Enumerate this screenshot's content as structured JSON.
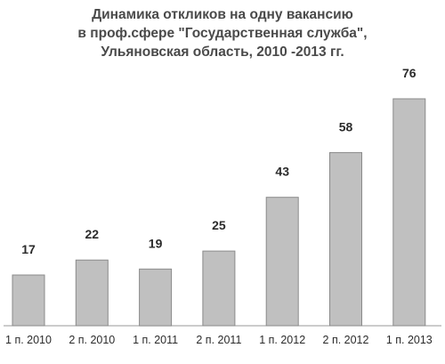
{
  "chart_data": {
    "type": "bar",
    "title_lines": [
      "Динамика откликов на одну вакансию",
      "в проф.сфере \"Государственная служба\",",
      "Ульяновская область,  2010 -2013 гг."
    ],
    "categories": [
      "1 п. 2010",
      "2 п. 2010",
      "1 п. 2011",
      "2 п. 2011",
      "1 п. 2012",
      "2 п. 2012",
      "1 п. 2013"
    ],
    "values": [
      17,
      22,
      19,
      25,
      43,
      58,
      76
    ],
    "ylim": [
      0,
      80
    ],
    "grid": false,
    "legend": "none",
    "colors": {
      "bar_fill": "#c0c0c0",
      "bar_stroke": "#8a8a8a",
      "axis": "#9a9a9a"
    }
  }
}
